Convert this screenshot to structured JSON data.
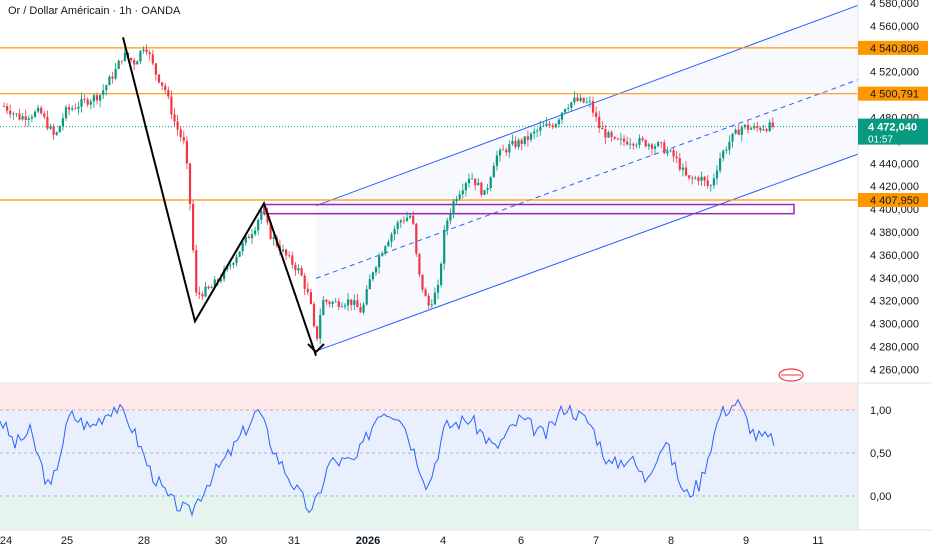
{
  "title": "Or / Dollar Américain · 1h · OANDA",
  "chart_data": {
    "type": "candlestick",
    "symbol": "XAUUSD",
    "price_axis": {
      "min": 4250,
      "max": 4590,
      "ticks": [
        "4 580,000",
        "4 560,000",
        "4 540,000",
        "4 520,000",
        "4 500,000",
        "4 480,000",
        "4 460,000",
        "4 440,000",
        "4 420,000",
        "4 400,000",
        "4 380,000",
        "4 360,000",
        "4 340,000",
        "4 320,000",
        "4 300,000",
        "4 280,000",
        "4 260,000"
      ],
      "tick_values": [
        4580,
        4560,
        4540,
        4520,
        4500,
        4480,
        4460,
        4440,
        4420,
        4400,
        4380,
        4360,
        4340,
        4320,
        4300,
        4280,
        4260
      ]
    },
    "time_axis": {
      "labels": [
        "24",
        "25",
        "28",
        "30",
        "31",
        "2026",
        "4",
        "6",
        "7",
        "8",
        "9",
        "11"
      ]
    },
    "price_levels": [
      {
        "value": 4540.806,
        "label": "4 540,806",
        "color": "#ff9800"
      },
      {
        "value": 4500.791,
        "label": "4 500,791",
        "color": "#ff9800"
      },
      {
        "value": 4407.95,
        "label": "4 407,950",
        "color": "#ff9800"
      }
    ],
    "current_price": {
      "value": 4472.04,
      "label": "4 472,040",
      "countdown": "01:57",
      "color": "#089981"
    },
    "colors": {
      "up": "#089981",
      "down": "#f23645",
      "channel": "#2962ff",
      "level": "#ff9800",
      "box": "#9c27b0",
      "oscillator": "#2962ff"
    },
    "pattern": {
      "type": "zigzag",
      "points_price": [
        4550,
        4302,
        4405,
        4272
      ]
    },
    "channel": {
      "lower_start": 4276,
      "lower_end": 4448,
      "upper_start": 4403,
      "upper_end": 4578
    },
    "box": {
      "top": 4404,
      "bottom": 4396
    },
    "oscillator": {
      "ticks": [
        "1,00",
        "0,50",
        "0,00"
      ],
      "tick_values": [
        1.0,
        0.5,
        0.0
      ],
      "min": -0.4,
      "max": 1.3,
      "upper": 1.0,
      "middle": 0.5,
      "lower": 0.0
    }
  }
}
